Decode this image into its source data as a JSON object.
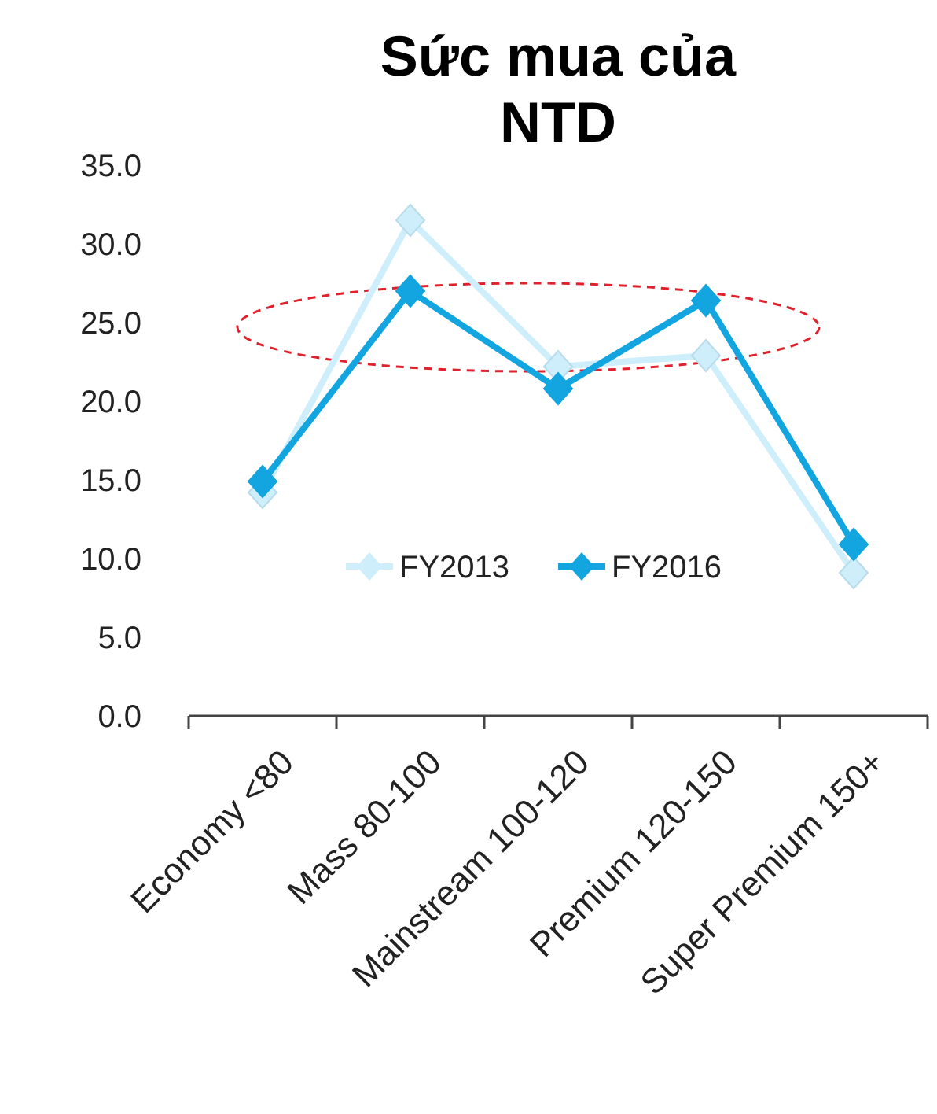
{
  "chart_data": {
    "type": "line",
    "title": "Sức mua của NTD",
    "categories": [
      "Economy <80",
      "Mass 80-100",
      "Mainstream 100-120",
      "Premium 120-150",
      "Super Premium 150+"
    ],
    "series": [
      {
        "name": "FY2013",
        "color": "#cdeefa",
        "values": [
          14.2,
          31.5,
          22.2,
          22.9,
          9.1
        ]
      },
      {
        "name": "FY2016",
        "color": "#12a5e0",
        "values": [
          14.9,
          27.0,
          20.8,
          26.4,
          10.9
        ]
      }
    ],
    "ylim": [
      0,
      35
    ],
    "yticks": [
      {
        "value": 0,
        "label": "0.0"
      },
      {
        "value": 5,
        "label": "5.0"
      },
      {
        "value": 10,
        "label": "10.0"
      },
      {
        "value": 15,
        "label": "15.0"
      },
      {
        "value": 20,
        "label": "20.0"
      },
      {
        "value": 25,
        "label": "25.0"
      },
      {
        "value": 30,
        "label": "30.0"
      },
      {
        "value": 35,
        "label": "35.0"
      }
    ],
    "marker": "diamond",
    "line_style": "solid",
    "legend": "bottom",
    "grid": false
  }
}
